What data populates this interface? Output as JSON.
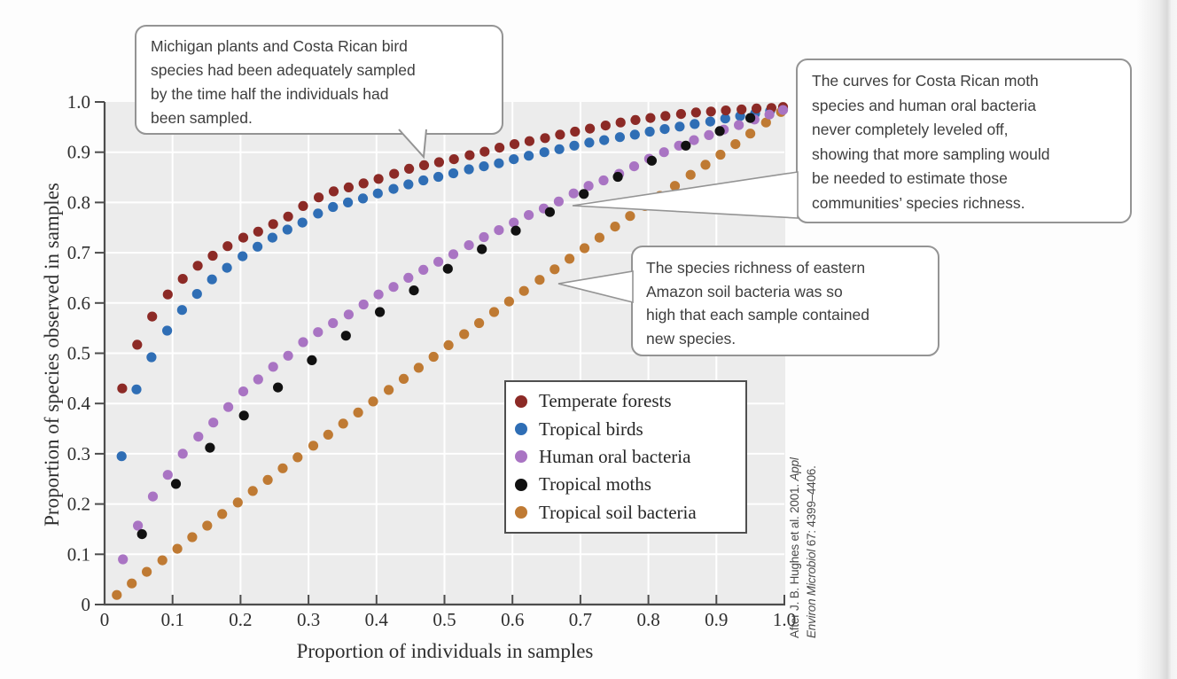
{
  "colors": {
    "plot_bg": "#ececec",
    "grid": "#ffffff",
    "axis": "#4d4d4d",
    "tick_text": "#2e2e2e",
    "callout_border": "#949494"
  },
  "callouts": [
    {
      "text": "Michigan plants and Costa Rican bird\nspecies had been adequately sampled\nby the time half the individuals had\nbeen sampled."
    },
    {
      "text": "The curves for Costa Rican moth\nspecies and human oral bacteria\nnever completely leveled off,\nshowing that more sampling would\nbe needed to estimate those\ncommunities’ species richness."
    },
    {
      "text": "The species richness of eastern\nAmazon soil bacteria was so\nhigh that each sample contained\nnew species."
    }
  ],
  "citation": {
    "line1_normal": "After J. B. Hughes et al. 2001. ",
    "line1_italic": "Appl",
    "line2_italic": "Environ Microbiol",
    "line2_normal": " 67: 4399–4406."
  },
  "legend": {
    "items": [
      {
        "label": "Temperate forests"
      },
      {
        "label": "Tropical birds"
      },
      {
        "label": "Human oral bacteria"
      },
      {
        "label": "Tropical moths"
      },
      {
        "label": "Tropical soil bacteria"
      }
    ]
  },
  "axes": {
    "x_title": "Proportion of individuals in samples",
    "y_title": "Proportion of species observed in samples",
    "x_tick_values": [
      0,
      0.1,
      0.2,
      0.3,
      0.4,
      0.5,
      0.6,
      0.7,
      0.8,
      0.9,
      1.0
    ],
    "x_tick_labels": [
      "0",
      "0.1",
      "0.2",
      "0.3",
      "0.4",
      "0.5",
      "0.6",
      "0.7",
      "0.8",
      "0.9",
      "1.0"
    ],
    "y_tick_values": [
      0,
      0.1,
      0.2,
      0.3,
      0.4,
      0.5,
      0.6,
      0.7,
      0.8,
      0.9,
      1.0
    ],
    "y_tick_labels": [
      "0",
      "0.1",
      "0.2",
      "0.3",
      "0.4",
      "0.5",
      "0.6",
      "0.7",
      "0.8",
      "0.9",
      "1.0"
    ]
  },
  "chart_data": {
    "type": "scatter",
    "xlabel": "Proportion of individuals in samples",
    "ylabel": "Proportion of species observed in samples",
    "xlim": [
      0,
      1.0
    ],
    "ylim": [
      0,
      1.0
    ],
    "grid": true,
    "legend_position": "lower-right-inside",
    "series": [
      {
        "name": "Tropical soil bacteria",
        "color": "#bf7a33",
        "points": [
          [
            0.018,
            0.019
          ],
          [
            0.04,
            0.042
          ],
          [
            0.062,
            0.065
          ],
          [
            0.085,
            0.088
          ],
          [
            0.107,
            0.111
          ],
          [
            0.129,
            0.134
          ],
          [
            0.151,
            0.157
          ],
          [
            0.173,
            0.18
          ],
          [
            0.196,
            0.203
          ],
          [
            0.218,
            0.226
          ],
          [
            0.24,
            0.248
          ],
          [
            0.262,
            0.271
          ],
          [
            0.284,
            0.293
          ],
          [
            0.307,
            0.316
          ],
          [
            0.329,
            0.338
          ],
          [
            0.351,
            0.36
          ],
          [
            0.373,
            0.382
          ],
          [
            0.395,
            0.404
          ],
          [
            0.418,
            0.427
          ],
          [
            0.44,
            0.449
          ],
          [
            0.462,
            0.471
          ],
          [
            0.484,
            0.493
          ],
          [
            0.506,
            0.516
          ],
          [
            0.529,
            0.538
          ],
          [
            0.551,
            0.56
          ],
          [
            0.573,
            0.582
          ],
          [
            0.595,
            0.603
          ],
          [
            0.617,
            0.624
          ],
          [
            0.64,
            0.646
          ],
          [
            0.662,
            0.667
          ],
          [
            0.684,
            0.688
          ],
          [
            0.706,
            0.709
          ],
          [
            0.728,
            0.73
          ],
          [
            0.751,
            0.752
          ],
          [
            0.773,
            0.773
          ],
          [
            0.795,
            0.793
          ],
          [
            0.817,
            0.813
          ],
          [
            0.839,
            0.833
          ],
          [
            0.862,
            0.855
          ],
          [
            0.884,
            0.875
          ],
          [
            0.906,
            0.895
          ],
          [
            0.928,
            0.916
          ],
          [
            0.95,
            0.937
          ],
          [
            0.973,
            0.959
          ],
          [
            0.995,
            0.98
          ]
        ]
      },
      {
        "name": "Tropical birds",
        "color": "#2f6eb5",
        "points": [
          [
            0.025,
            0.295
          ],
          [
            0.047,
            0.428
          ],
          [
            0.069,
            0.492
          ],
          [
            0.092,
            0.545
          ],
          [
            0.114,
            0.586
          ],
          [
            0.136,
            0.618
          ],
          [
            0.158,
            0.647
          ],
          [
            0.18,
            0.67
          ],
          [
            0.203,
            0.693
          ],
          [
            0.225,
            0.712
          ],
          [
            0.247,
            0.73
          ],
          [
            0.269,
            0.746
          ],
          [
            0.291,
            0.76
          ],
          [
            0.314,
            0.778
          ],
          [
            0.336,
            0.791
          ],
          [
            0.358,
            0.8
          ],
          [
            0.38,
            0.808
          ],
          [
            0.402,
            0.818
          ],
          [
            0.425,
            0.827
          ],
          [
            0.447,
            0.836
          ],
          [
            0.469,
            0.844
          ],
          [
            0.491,
            0.851
          ],
          [
            0.513,
            0.858
          ],
          [
            0.536,
            0.866
          ],
          [
            0.558,
            0.872
          ],
          [
            0.58,
            0.878
          ],
          [
            0.602,
            0.886
          ],
          [
            0.624,
            0.893
          ],
          [
            0.647,
            0.9
          ],
          [
            0.669,
            0.906
          ],
          [
            0.691,
            0.913
          ],
          [
            0.713,
            0.919
          ],
          [
            0.735,
            0.924
          ],
          [
            0.758,
            0.93
          ],
          [
            0.78,
            0.935
          ],
          [
            0.802,
            0.941
          ],
          [
            0.824,
            0.946
          ],
          [
            0.846,
            0.951
          ],
          [
            0.868,
            0.956
          ],
          [
            0.891,
            0.961
          ],
          [
            0.913,
            0.967
          ],
          [
            0.935,
            0.972
          ],
          [
            0.957,
            0.977
          ],
          [
            0.979,
            0.982
          ],
          [
            0.998,
            0.987
          ]
        ]
      },
      {
        "name": "Temperate forests",
        "color": "#8c2a26",
        "points": [
          [
            0.026,
            0.43
          ],
          [
            0.048,
            0.517
          ],
          [
            0.07,
            0.573
          ],
          [
            0.093,
            0.617
          ],
          [
            0.115,
            0.648
          ],
          [
            0.137,
            0.674
          ],
          [
            0.159,
            0.694
          ],
          [
            0.181,
            0.713
          ],
          [
            0.204,
            0.73
          ],
          [
            0.226,
            0.742
          ],
          [
            0.248,
            0.757
          ],
          [
            0.27,
            0.772
          ],
          [
            0.292,
            0.793
          ],
          [
            0.315,
            0.81
          ],
          [
            0.337,
            0.822
          ],
          [
            0.359,
            0.83
          ],
          [
            0.381,
            0.838
          ],
          [
            0.403,
            0.847
          ],
          [
            0.426,
            0.857
          ],
          [
            0.448,
            0.867
          ],
          [
            0.47,
            0.874
          ],
          [
            0.492,
            0.88
          ],
          [
            0.514,
            0.886
          ],
          [
            0.537,
            0.894
          ],
          [
            0.559,
            0.901
          ],
          [
            0.581,
            0.909
          ],
          [
            0.603,
            0.916
          ],
          [
            0.625,
            0.922
          ],
          [
            0.648,
            0.928
          ],
          [
            0.67,
            0.935
          ],
          [
            0.692,
            0.941
          ],
          [
            0.714,
            0.947
          ],
          [
            0.737,
            0.953
          ],
          [
            0.759,
            0.959
          ],
          [
            0.781,
            0.964
          ],
          [
            0.803,
            0.968
          ],
          [
            0.825,
            0.972
          ],
          [
            0.848,
            0.976
          ],
          [
            0.87,
            0.979
          ],
          [
            0.892,
            0.981
          ],
          [
            0.914,
            0.983
          ],
          [
            0.937,
            0.985
          ],
          [
            0.959,
            0.987
          ],
          [
            0.981,
            0.988
          ],
          [
            0.998,
            0.99
          ]
        ]
      },
      {
        "name": "Human oral bacteria",
        "color": "#a974c3",
        "points": [
          [
            0.027,
            0.09
          ],
          [
            0.049,
            0.157
          ],
          [
            0.071,
            0.215
          ],
          [
            0.093,
            0.258
          ],
          [
            0.115,
            0.3
          ],
          [
            0.138,
            0.334
          ],
          [
            0.16,
            0.362
          ],
          [
            0.182,
            0.393
          ],
          [
            0.204,
            0.424
          ],
          [
            0.226,
            0.448
          ],
          [
            0.248,
            0.473
          ],
          [
            0.27,
            0.495
          ],
          [
            0.292,
            0.522
          ],
          [
            0.314,
            0.542
          ],
          [
            0.336,
            0.56
          ],
          [
            0.359,
            0.577
          ],
          [
            0.381,
            0.597
          ],
          [
            0.403,
            0.617
          ],
          [
            0.425,
            0.632
          ],
          [
            0.447,
            0.65
          ],
          [
            0.469,
            0.666
          ],
          [
            0.491,
            0.682
          ],
          [
            0.513,
            0.697
          ],
          [
            0.536,
            0.715
          ],
          [
            0.558,
            0.731
          ],
          [
            0.58,
            0.745
          ],
          [
            0.602,
            0.76
          ],
          [
            0.624,
            0.775
          ],
          [
            0.646,
            0.788
          ],
          [
            0.668,
            0.802
          ],
          [
            0.69,
            0.818
          ],
          [
            0.712,
            0.833
          ],
          [
            0.734,
            0.844
          ],
          [
            0.757,
            0.857
          ],
          [
            0.779,
            0.872
          ],
          [
            0.801,
            0.887
          ],
          [
            0.823,
            0.9
          ],
          [
            0.845,
            0.913
          ],
          [
            0.867,
            0.924
          ],
          [
            0.889,
            0.934
          ],
          [
            0.911,
            0.945
          ],
          [
            0.933,
            0.954
          ],
          [
            0.956,
            0.965
          ],
          [
            0.978,
            0.975
          ],
          [
            0.998,
            0.984
          ]
        ]
      },
      {
        "name": "Tropical moths",
        "color": "#111111",
        "points": [
          [
            0.055,
            0.14
          ],
          [
            0.105,
            0.24
          ],
          [
            0.155,
            0.312
          ],
          [
            0.205,
            0.376
          ],
          [
            0.255,
            0.432
          ],
          [
            0.305,
            0.486
          ],
          [
            0.355,
            0.535
          ],
          [
            0.405,
            0.582
          ],
          [
            0.455,
            0.625
          ],
          [
            0.505,
            0.668
          ],
          [
            0.555,
            0.707
          ],
          [
            0.605,
            0.744
          ],
          [
            0.655,
            0.781
          ],
          [
            0.705,
            0.817
          ],
          [
            0.755,
            0.851
          ],
          [
            0.805,
            0.883
          ],
          [
            0.855,
            0.913
          ],
          [
            0.905,
            0.942
          ],
          [
            0.95,
            0.968
          ]
        ]
      }
    ]
  },
  "legend_order": [
    "Temperate forests",
    "Tropical birds",
    "Human oral bacteria",
    "Tropical moths",
    "Tropical soil bacteria"
  ]
}
